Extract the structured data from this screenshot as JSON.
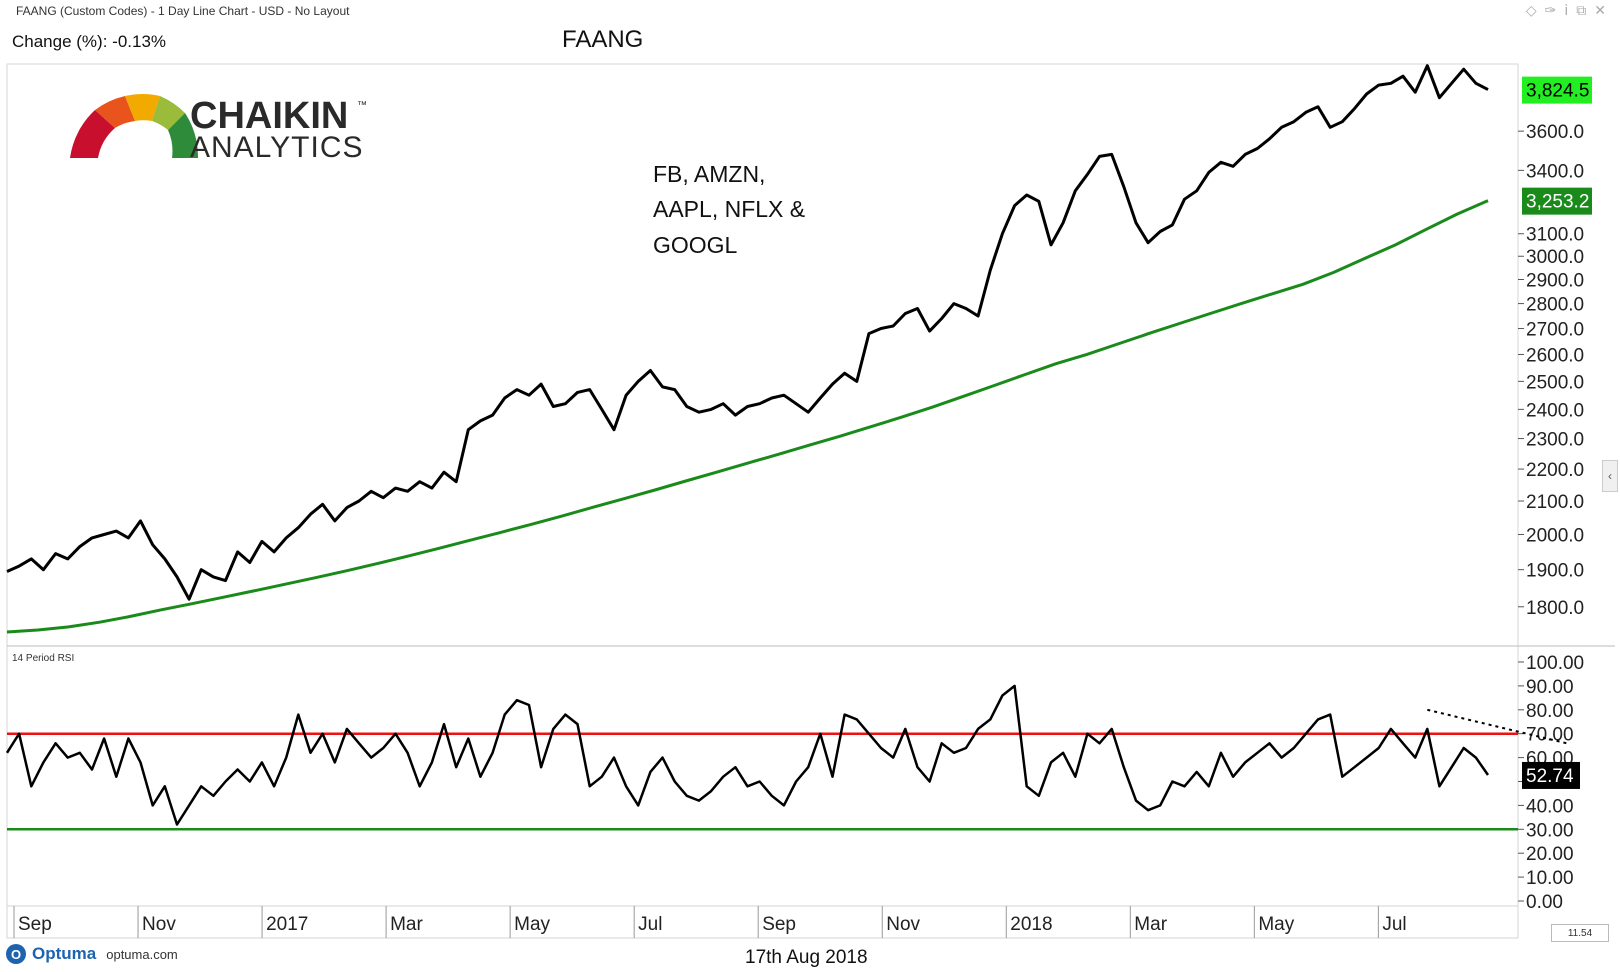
{
  "header": {
    "window_title": "FAANG (Custom Codes) - 1 Day Line Chart - USD - No Layout",
    "change_text": "Change (%): -0.13%",
    "chart_title": "FAANG",
    "toolbar_icons": [
      "diamond-icon",
      "pin-icon",
      "info-icon",
      "restore-icon",
      "close-icon"
    ]
  },
  "logo": {
    "line1": "CHAIKIN",
    "tm": "™",
    "line2": "ANALYTICS",
    "gauge_colors": [
      "#c8102e",
      "#e8541c",
      "#f2a900",
      "#9bbb3b",
      "#2e8b3a"
    ]
  },
  "annotation": {
    "line1": "FB, AMZN,",
    "line2": "AAPL, NFLX &",
    "line3": "GOOGL"
  },
  "footer": {
    "brand": "Optuma",
    "site": "optuma.com",
    "date": "17th Aug 2018",
    "zoom_box": "11.54"
  },
  "chart_data": [
    {
      "type": "line",
      "panel": "price",
      "ylim": [
        1700,
        3970
      ],
      "y_scale": "log",
      "y_ticks": [
        1800,
        1900,
        2000,
        2100,
        2200,
        2300,
        2400,
        2500,
        2600,
        2700,
        2800,
        2900,
        3000,
        3100,
        3400,
        3600
      ],
      "tick_format": "one-decimal",
      "x_labels": [
        "Sep",
        "Nov",
        "2017",
        "Mar",
        "May",
        "Jul",
        "Sep",
        "Nov",
        "2018",
        "Mar",
        "May",
        "Jul"
      ],
      "series": [
        {
          "color": "#000000",
          "last_value_label": "3,824.5",
          "label_bg": "#22ee22",
          "values": [
            1895,
            1910,
            1930,
            1900,
            1945,
            1930,
            1965,
            1990,
            2000,
            2010,
            1990,
            2040,
            1970,
            1930,
            1880,
            1820,
            1900,
            1880,
            1870,
            1950,
            1920,
            1980,
            1950,
            1990,
            2020,
            2060,
            2090,
            2040,
            2080,
            2100,
            2130,
            2110,
            2140,
            2130,
            2160,
            2140,
            2190,
            2160,
            2330,
            2360,
            2380,
            2440,
            2470,
            2450,
            2490,
            2410,
            2420,
            2460,
            2470,
            2400,
            2330,
            2450,
            2500,
            2540,
            2480,
            2470,
            2410,
            2390,
            2400,
            2420,
            2380,
            2410,
            2420,
            2440,
            2450,
            2420,
            2390,
            2440,
            2490,
            2530,
            2500,
            2680,
            2700,
            2710,
            2760,
            2780,
            2690,
            2740,
            2800,
            2780,
            2750,
            2940,
            3100,
            3230,
            3280,
            3250,
            3050,
            3150,
            3300,
            3380,
            3470,
            3480,
            3320,
            3150,
            3060,
            3110,
            3140,
            3260,
            3300,
            3390,
            3440,
            3420,
            3480,
            3510,
            3560,
            3620,
            3650,
            3700,
            3730,
            3620,
            3650,
            3720,
            3800,
            3850,
            3860,
            3900,
            3810,
            3960,
            3780,
            3860,
            3940,
            3860,
            3824.5
          ]
        },
        {
          "color": "#1a8a1a",
          "last_value_label": "3,253.2",
          "label_bg": "#1a8a1a",
          "values": [
            1735,
            1740,
            1748,
            1760,
            1775,
            1792,
            1808,
            1825,
            1842,
            1860,
            1878,
            1897,
            1917,
            1938,
            1960,
            1983,
            2006,
            2030,
            2055,
            2081,
            2107,
            2134,
            2162,
            2190,
            2219,
            2248,
            2278,
            2308,
            2340,
            2373,
            2408,
            2446,
            2485,
            2525,
            2565,
            2600,
            2640,
            2680,
            2720,
            2760,
            2800,
            2840,
            2880,
            2930,
            2990,
            3050,
            3120,
            3190,
            3253.2
          ]
        }
      ]
    },
    {
      "type": "line",
      "panel": "rsi",
      "title": "14 Period RSI",
      "ylim": [
        0,
        100
      ],
      "y_ticks": [
        0,
        10,
        20,
        30,
        40,
        50,
        60,
        70,
        80,
        90,
        100
      ],
      "tick_format": "two-decimal",
      "overbought": 70,
      "oversold": 30,
      "overbought_color": "#ee1111",
      "oversold_color": "#1a8a1a",
      "trendline": {
        "from": [
          117,
          80
        ],
        "to": [
          126,
          66
        ],
        "style": "dotted"
      },
      "series": [
        {
          "color": "#000000",
          "last_value_label": "52.74",
          "label_bg": "#000000",
          "values": [
            62,
            70,
            48,
            58,
            66,
            60,
            62,
            55,
            68,
            52,
            68,
            58,
            40,
            48,
            32,
            40,
            48,
            44,
            50,
            55,
            50,
            58,
            48,
            60,
            78,
            62,
            70,
            58,
            72,
            66,
            60,
            64,
            70,
            62,
            48,
            58,
            74,
            56,
            68,
            52,
            62,
            78,
            84,
            82,
            56,
            72,
            78,
            74,
            48,
            52,
            60,
            48,
            40,
            54,
            60,
            50,
            44,
            42,
            46,
            52,
            56,
            48,
            50,
            44,
            40,
            50,
            56,
            70,
            52,
            78,
            76,
            70,
            64,
            60,
            72,
            56,
            50,
            66,
            62,
            64,
            72,
            76,
            86,
            90,
            48,
            44,
            58,
            62,
            52,
            70,
            66,
            72,
            56,
            42,
            38,
            40,
            50,
            48,
            54,
            48,
            62,
            52,
            58,
            62,
            66,
            60,
            64,
            70,
            76,
            78,
            52,
            56,
            60,
            64,
            72,
            66,
            60,
            72,
            48,
            56,
            64,
            60,
            52.74
          ]
        }
      ]
    }
  ]
}
